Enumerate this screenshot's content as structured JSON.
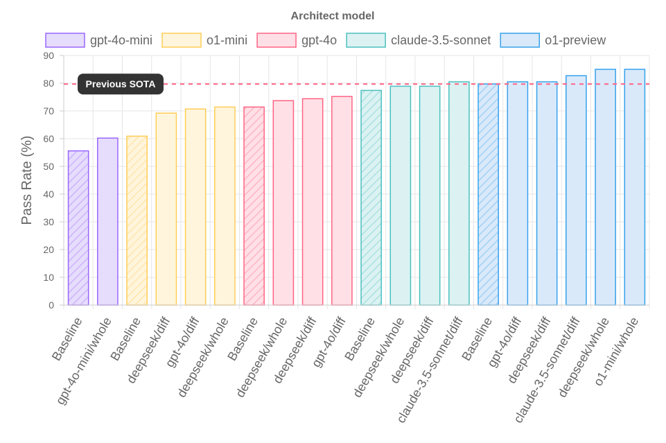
{
  "chart_data": {
    "type": "bar",
    "title": "Architect model",
    "ylabel": "Pass Rate (%)",
    "ylim": [
      0,
      90
    ],
    "y_ticks": [
      0,
      10,
      20,
      30,
      40,
      50,
      60,
      70,
      80,
      90
    ],
    "grid": true,
    "legend_placement": "top",
    "annotation": {
      "label": "Previous SOTA",
      "y": 79.7,
      "line_color": "#ff6384"
    },
    "series": [
      {
        "name": "gpt-4o-mini",
        "fill": "#e6dcfc",
        "border": "#9966ff"
      },
      {
        "name": "o1-mini",
        "fill": "#fff5dc",
        "border": "#ffcd56"
      },
      {
        "name": "gpt-4o",
        "fill": "#ffe0e6",
        "border": "#ff6384"
      },
      {
        "name": "claude-3.5-sonnet",
        "fill": "#dcf2f2",
        "border": "#4bc0c0"
      },
      {
        "name": "o1-preview",
        "fill": "#d9e9fa",
        "border": "#36a2eb"
      }
    ],
    "bars": [
      {
        "label": "Baseline",
        "value": 55.6,
        "series": 0,
        "hatched": true
      },
      {
        "label": "gpt-4o-mini/whole",
        "value": 60.2,
        "series": 0,
        "hatched": false
      },
      {
        "label": "Baseline",
        "value": 60.9,
        "series": 1,
        "hatched": true
      },
      {
        "label": "deepseek/diff",
        "value": 69.2,
        "series": 1,
        "hatched": false
      },
      {
        "label": "gpt-4o/diff",
        "value": 70.7,
        "series": 1,
        "hatched": false
      },
      {
        "label": "deepseek/whole",
        "value": 71.4,
        "series": 1,
        "hatched": false
      },
      {
        "label": "Baseline",
        "value": 71.4,
        "series": 2,
        "hatched": true
      },
      {
        "label": "deepseek/whole",
        "value": 73.7,
        "series": 2,
        "hatched": false
      },
      {
        "label": "deepseek/diff",
        "value": 74.4,
        "series": 2,
        "hatched": false
      },
      {
        "label": "gpt-4o/diff",
        "value": 75.2,
        "series": 2,
        "hatched": false
      },
      {
        "label": "Baseline",
        "value": 77.4,
        "series": 3,
        "hatched": true
      },
      {
        "label": "deepseek/whole",
        "value": 78.9,
        "series": 3,
        "hatched": false
      },
      {
        "label": "deepseek/diff",
        "value": 78.9,
        "series": 3,
        "hatched": false
      },
      {
        "label": "claude-3.5-sonnet/diff",
        "value": 80.5,
        "series": 3,
        "hatched": false
      },
      {
        "label": "Baseline",
        "value": 79.7,
        "series": 4,
        "hatched": true
      },
      {
        "label": "gpt-4o/diff",
        "value": 80.5,
        "series": 4,
        "hatched": false
      },
      {
        "label": "deepseek/diff",
        "value": 80.5,
        "series": 4,
        "hatched": false
      },
      {
        "label": "claude-3.5-sonnet/diff",
        "value": 82.7,
        "series": 4,
        "hatched": false
      },
      {
        "label": "deepseek/whole",
        "value": 85.0,
        "series": 4,
        "hatched": false
      },
      {
        "label": "o1-mini/whole",
        "value": 85.0,
        "series": 4,
        "hatched": false
      }
    ]
  }
}
